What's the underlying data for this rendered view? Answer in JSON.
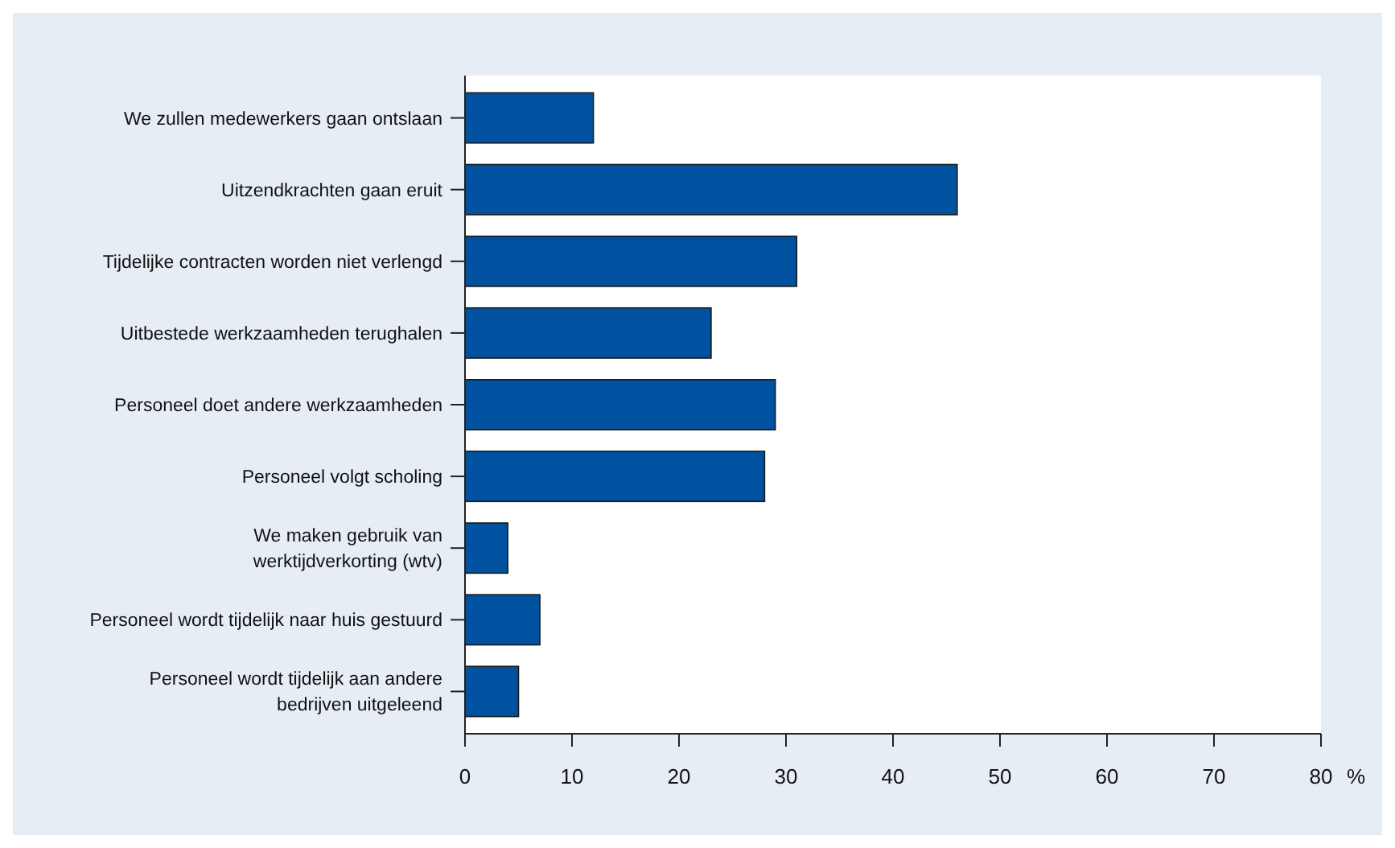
{
  "chart_data": {
    "type": "bar",
    "orientation": "horizontal",
    "xlabel": "%",
    "categories": [
      "We zullen medewerkers gaan ontslaan",
      "Uitzendkrachten gaan eruit",
      "Tijdelijke contracten worden niet verlengd",
      "Uitbestede werkzaamheden terughalen",
      "Personeel doet andere werkzaamheden",
      "Personeel volgt scholing",
      "We maken gebruik van\nwerktijdverkorting (wtv)",
      "Personeel wordt tijdelijk naar huis gestuurd",
      "Personeel wordt tijdelijk aan andere\nbedrijven uitgeleend"
    ],
    "values": [
      12,
      46,
      31,
      23,
      29,
      28,
      4,
      7,
      5
    ],
    "color": "#0052a1",
    "xlim": [
      0,
      80
    ],
    "xticks": [
      0,
      10,
      20,
      30,
      40,
      50,
      60,
      70,
      80
    ],
    "grid": false
  }
}
